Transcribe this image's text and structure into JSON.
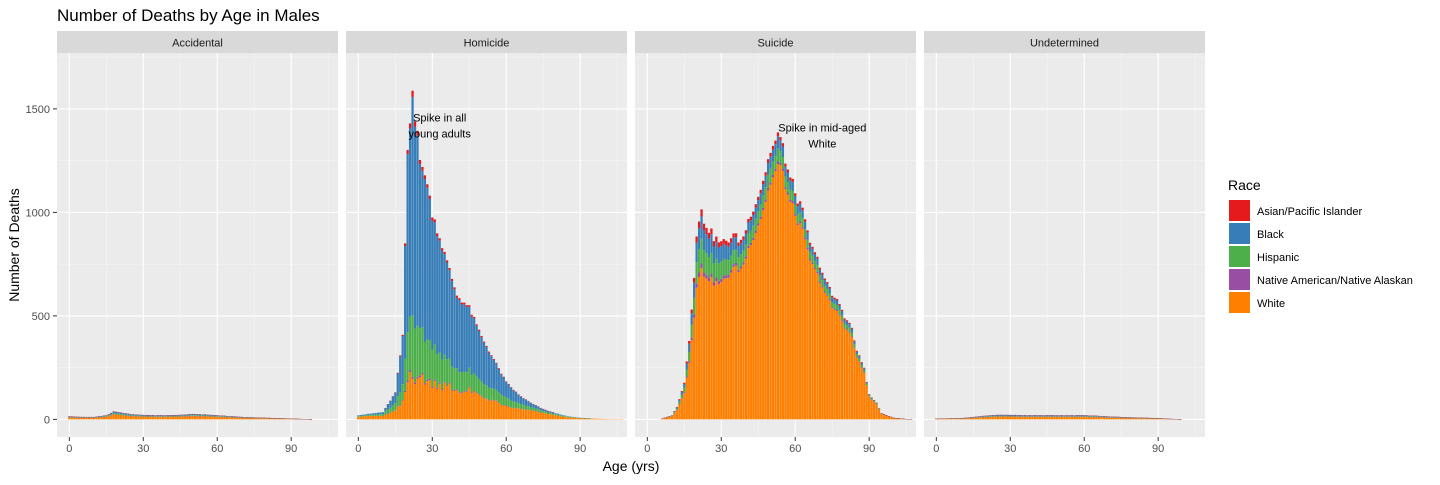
{
  "chart_data": {
    "type": "bar",
    "stacked": true,
    "faceted": true,
    "title": "Number of Deaths by Age in Males",
    "xlabel": "Age (yrs)",
    "ylabel": "Number of Deaths",
    "xlim": [
      -5,
      109
    ],
    "ylim": [
      -85,
      1770
    ],
    "x_ticks": [
      0,
      30,
      60,
      90
    ],
    "y_ticks": [
      0,
      500,
      1000,
      1500
    ],
    "grid": true,
    "legend": {
      "title": "Race",
      "position": "right",
      "entries": [
        {
          "name": "Asian/Pacific Islander",
          "color": "#E41A1C"
        },
        {
          "name": "Black",
          "color": "#377EB8"
        },
        {
          "name": "Hispanic",
          "color": "#4DAF4A"
        },
        {
          "name": "Native American/Native Alaskan",
          "color": "#984EA3"
        },
        {
          "name": "White",
          "color": "#FF7F00"
        }
      ]
    },
    "series_order": [
      "Asian/Pacific Islander",
      "Black",
      "Hispanic",
      "Native American/Native Alaskan",
      "White"
    ],
    "panels": [
      {
        "name": "Accidental",
        "ages": [
          0,
          5,
          10,
          15,
          18,
          20,
          25,
          30,
          35,
          40,
          45,
          50,
          55,
          60,
          65,
          70,
          75,
          80,
          85,
          90,
          95,
          100
        ],
        "totals": [
          15,
          12,
          12,
          20,
          38,
          35,
          25,
          22,
          20,
          20,
          22,
          26,
          24,
          20,
          16,
          12,
          10,
          8,
          6,
          4,
          2,
          0
        ],
        "shares": {
          "Asian/Pacific Islander": 0.02,
          "Black": 0.2,
          "Hispanic": 0.12,
          "Native American/Native Alaskan": 0.02,
          "White": 0.64
        },
        "annotation": ""
      },
      {
        "name": "Homicide",
        "ages": [
          0,
          5,
          10,
          15,
          18,
          20,
          21,
          22,
          23,
          24,
          25,
          27,
          30,
          33,
          35,
          40,
          45,
          50,
          55,
          60,
          65,
          70,
          75,
          80,
          85,
          90,
          95,
          100,
          105
        ],
        "totals": [
          20,
          28,
          35,
          130,
          400,
          1300,
          1430,
          1620,
          1470,
          1400,
          1230,
          1200,
          1000,
          880,
          800,
          600,
          540,
          400,
          290,
          180,
          120,
          80,
          50,
          30,
          15,
          8,
          4,
          2,
          1
        ],
        "black": [
          4,
          6,
          10,
          50,
          230,
          840,
          920,
          1050,
          955,
          910,
          780,
          770,
          620,
          545,
          495,
          350,
          300,
          210,
          140,
          75,
          40,
          20,
          9,
          5,
          2,
          1,
          0,
          0,
          0
        ],
        "hispanic": [
          3,
          5,
          8,
          35,
          75,
          230,
          260,
          290,
          260,
          245,
          230,
          200,
          180,
          150,
          130,
          100,
          90,
          70,
          55,
          40,
          25,
          15,
          9,
          5,
          3,
          1,
          0,
          0,
          0
        ],
        "api": [
          0,
          0,
          0,
          2,
          6,
          20,
          25,
          30,
          25,
          22,
          20,
          18,
          15,
          12,
          11,
          9,
          8,
          6,
          4,
          3,
          2,
          1,
          1,
          0,
          0,
          0,
          0,
          0,
          0
        ],
        "native": [
          0,
          0,
          0,
          2,
          4,
          8,
          9,
          10,
          9,
          8,
          8,
          7,
          6,
          5,
          5,
          4,
          4,
          3,
          2,
          2,
          1,
          1,
          0,
          0,
          0,
          0,
          0,
          0,
          0
        ],
        "annotation": "Spike in all\nyoung adults",
        "annotation_at": [
          33,
          1440
        ]
      },
      {
        "name": "Suicide",
        "ages": [
          0,
          5,
          10,
          12,
          15,
          17,
          19,
          20,
          21,
          22,
          23,
          25,
          27,
          30,
          33,
          35,
          38,
          40,
          42,
          45,
          48,
          50,
          52,
          53,
          54,
          55,
          57,
          60,
          63,
          65,
          67,
          70,
          72,
          75,
          78,
          80,
          83,
          85,
          88,
          90,
          93,
          95,
          100,
          105
        ],
        "totals": [
          0,
          0,
          20,
          60,
          180,
          380,
          700,
          900,
          950,
          1000,
          960,
          920,
          880,
          850,
          870,
          890,
          860,
          920,
          1000,
          1080,
          1200,
          1300,
          1340,
          1380,
          1340,
          1320,
          1200,
          1100,
          1000,
          900,
          820,
          750,
          680,
          600,
          560,
          500,
          440,
          330,
          250,
          120,
          80,
          30,
          8,
          2
        ],
        "white_share": [
          1,
          1,
          0.75,
          0.75,
          0.72,
          0.72,
          0.72,
          0.72,
          0.72,
          0.72,
          0.73,
          0.74,
          0.75,
          0.77,
          0.8,
          0.82,
          0.84,
          0.85,
          0.86,
          0.87,
          0.88,
          0.88,
          0.89,
          0.89,
          0.9,
          0.9,
          0.9,
          0.9,
          0.9,
          0.9,
          0.9,
          0.9,
          0.9,
          0.9,
          0.9,
          0.9,
          0.9,
          0.9,
          0.9,
          0.9,
          0.9,
          0.9,
          0.9,
          0.9
        ],
        "annotation": "Spike in mid-aged\nWhite",
        "annotation_at": [
          71,
          1390
        ]
      },
      {
        "name": "Undetermined",
        "ages": [
          0,
          5,
          10,
          15,
          20,
          25,
          30,
          35,
          40,
          45,
          50,
          55,
          60,
          65,
          70,
          75,
          80,
          85,
          90,
          95,
          100
        ],
        "totals": [
          4,
          5,
          6,
          12,
          18,
          22,
          22,
          20,
          20,
          20,
          20,
          20,
          20,
          18,
          14,
          12,
          10,
          8,
          6,
          3,
          0
        ],
        "shares": {
          "Asian/Pacific Islander": 0.02,
          "Black": 0.22,
          "Hispanic": 0.1,
          "Native American/Native Alaskan": 0.02,
          "White": 0.64
        },
        "annotation": ""
      }
    ]
  }
}
